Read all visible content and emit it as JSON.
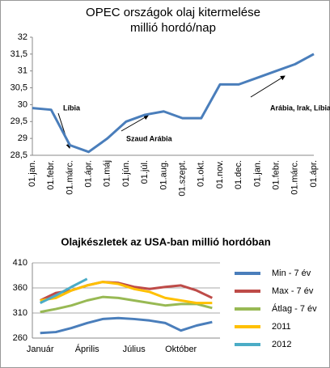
{
  "chart_data": [
    {
      "type": "line",
      "title": "OPEC országok olaj kitermelése",
      "subtitle": "millió hordó/nap",
      "categories": [
        "01.jan.",
        "01.febr.",
        "01.márc.",
        "01.ápr.",
        "01.máj",
        "01.jún.",
        "01.júl.",
        "01.aug.",
        "01.szept.",
        "01.okt.",
        "01.nov.",
        "01.dec.",
        "01.jan.",
        "01.febr.",
        "01.márc.",
        "01.ápr."
      ],
      "values": [
        29.9,
        29.85,
        28.8,
        28.6,
        29.0,
        29.5,
        29.7,
        29.8,
        29.6,
        29.6,
        30.6,
        30.6,
        30.8,
        31.0,
        31.2,
        31.5
      ],
      "color": "#4a7ebb",
      "ylim": [
        28.5,
        32
      ],
      "yticks": [
        {
          "value": 28.5,
          "label": "28,5"
        },
        29,
        {
          "value": 29.5,
          "label": "29,5"
        },
        30,
        {
          "value": 30.5,
          "label": "30,5"
        },
        31,
        {
          "value": 31.5,
          "label": "31,5"
        },
        32
      ],
      "annotations": [
        "Líbia",
        "Szaud Arábia",
        "Arábia, Irak, Líbia"
      ],
      "grid": false
    },
    {
      "type": "line",
      "title": "Olajkészletek az USA-ban millió hordóban",
      "categories": [
        "Január",
        null,
        null,
        "Április",
        null,
        null,
        "Július",
        null,
        null,
        "Október",
        null,
        null
      ],
      "series": [
        {
          "name": "Min - 7 év",
          "color": "#4a7ebb",
          "values": [
            270,
            272,
            280,
            290,
            298,
            300,
            298,
            295,
            290,
            275,
            285,
            292
          ]
        },
        {
          "name": "Max - 7 év",
          "color": "#be4b48",
          "values": [
            335,
            350,
            355,
            365,
            372,
            370,
            362,
            358,
            362,
            365,
            355,
            340
          ]
        },
        {
          "name": "Átlag - 7 év",
          "color": "#98b954",
          "values": [
            312,
            318,
            325,
            335,
            342,
            340,
            335,
            330,
            325,
            328,
            328,
            320
          ]
        },
        {
          "name": "2011",
          "color": "#ffc000",
          "values": [
            335,
            340,
            355,
            365,
            372,
            368,
            358,
            352,
            340,
            335,
            330,
            330
          ]
        },
        {
          "name": "2012",
          "color": "#4bacc6",
          "values": [
            330,
            345,
            362,
            378,
            null,
            null,
            null,
            null,
            null,
            null,
            null,
            null
          ]
        }
      ],
      "ylim": [
        260,
        410
      ],
      "yticks": [
        260,
        310,
        360,
        410
      ],
      "grid": true,
      "legend": "right"
    }
  ]
}
